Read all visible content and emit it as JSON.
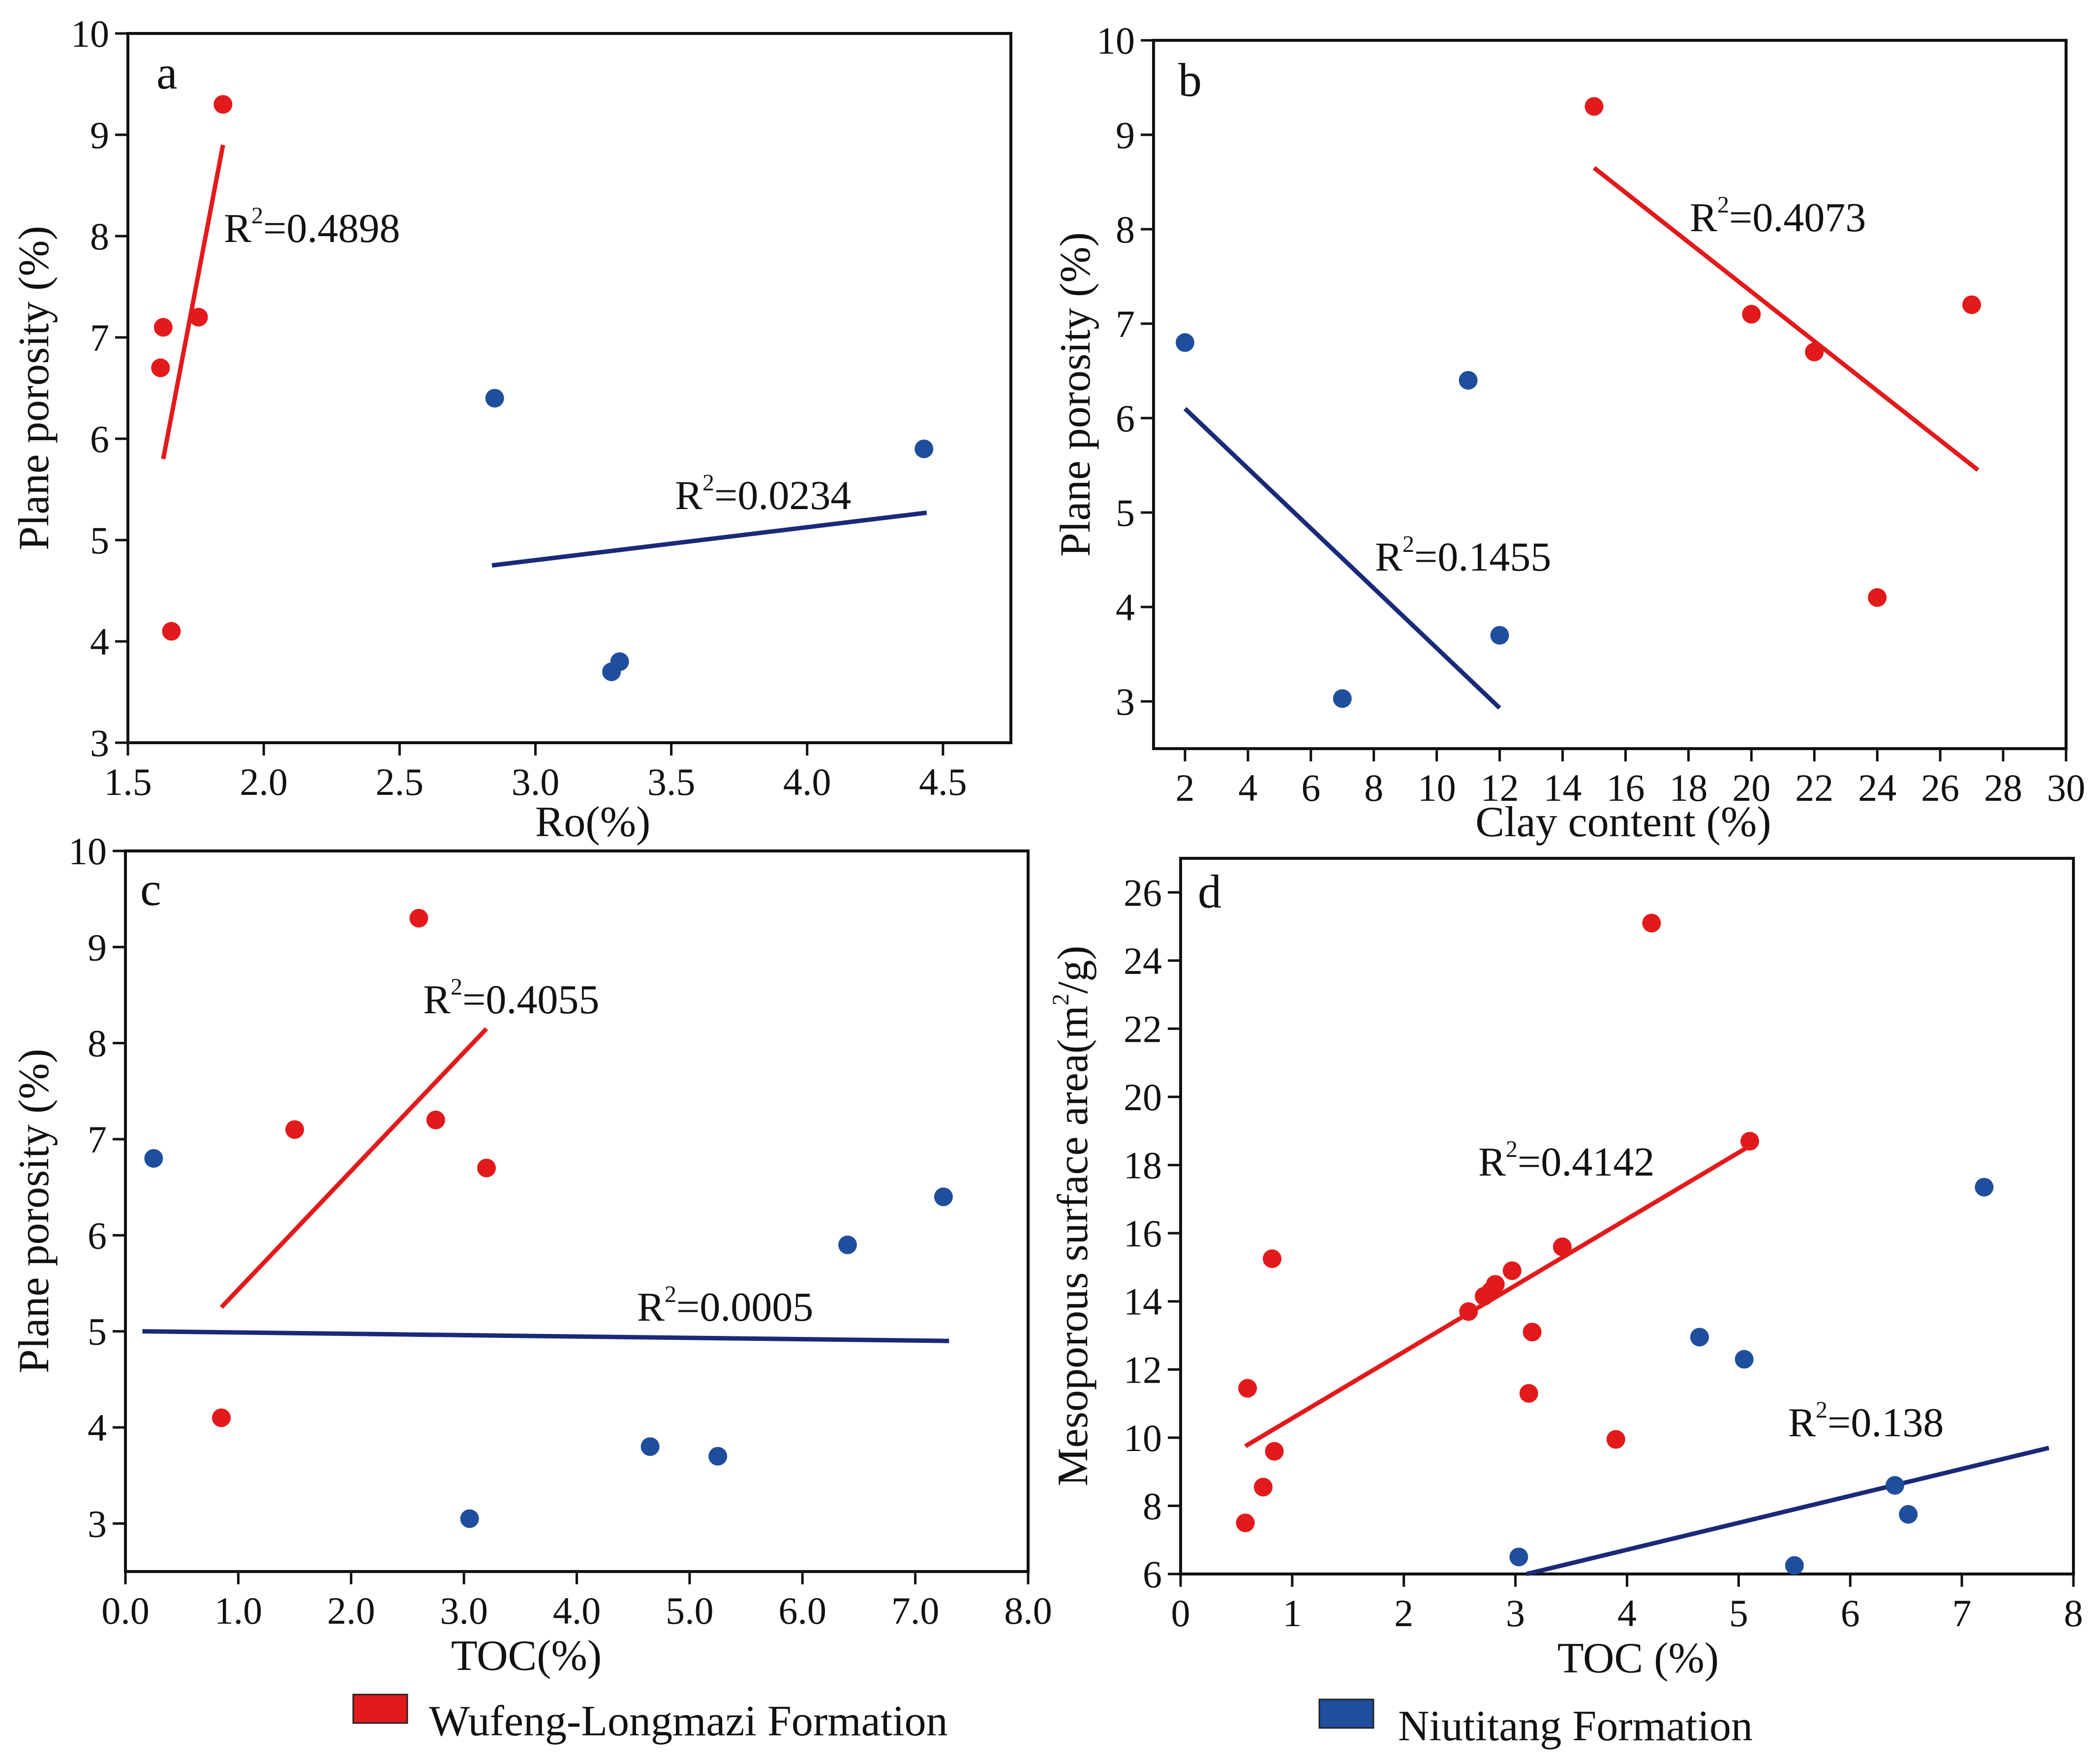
{
  "colors": {
    "wufeng": "#e31a1c",
    "niutitang": "#1f4e9c",
    "trend_blue": "#1a2a78",
    "axis": "#111111"
  },
  "legend": {
    "items": [
      {
        "label": "Wufeng-Longmazi Formation",
        "color": "#e31a1c"
      },
      {
        "label": "Niutitang Formation",
        "color": "#1f4e9c"
      }
    ]
  },
  "chart_data": [
    {
      "type": "scatter",
      "panel": "a",
      "xlabel": "Ro(%)",
      "ylabel": "Plane porosity (%)",
      "xlim": [
        1.5,
        4.75
      ],
      "ylim": [
        3,
        10
      ],
      "xticks": [
        1.5,
        2.0,
        2.5,
        3.0,
        3.5,
        4.0,
        4.5
      ],
      "xtick_labels": [
        "1.5",
        "2.0",
        "2.5",
        "3.0",
        "3.5",
        "4.0",
        "4.5"
      ],
      "yticks": [
        3,
        4,
        5,
        6,
        7,
        8,
        9,
        10
      ],
      "ytick_labels": [
        "3",
        "4",
        "5",
        "6",
        "7",
        "8",
        "9",
        "10"
      ],
      "series": [
        {
          "name": "Wufeng-Longmazi Formation",
          "color": "#e31a1c",
          "points": [
            [
              1.85,
              9.3
            ],
            [
              1.63,
              7.1
            ],
            [
              1.62,
              6.7
            ],
            [
              1.76,
              7.2
            ],
            [
              1.66,
              4.1
            ]
          ],
          "fit": {
            "x": [
              1.63,
              1.85
            ],
            "y": [
              5.8,
              8.9
            ],
            "color": "#e31a1c"
          },
          "r2": "0.4898"
        },
        {
          "name": "Niutitang Formation",
          "color": "#1f4e9c",
          "points": [
            [
              2.85,
              6.4
            ],
            [
              4.43,
              5.9
            ],
            [
              3.28,
              3.7
            ],
            [
              3.31,
              3.8
            ]
          ],
          "fit": {
            "x": [
              2.84,
              4.44
            ],
            "y": [
              4.75,
              5.27
            ],
            "color": "#1a2a78"
          },
          "r2": "0.0234"
        }
      ]
    },
    {
      "type": "scatter",
      "panel": "b",
      "xlabel": "Clay content (%)",
      "ylabel": "Plane porosity (%)",
      "xlim": [
        1,
        30
      ],
      "ylim": [
        2.5,
        10
      ],
      "xticks": [
        2,
        4,
        6,
        8,
        10,
        12,
        14,
        16,
        18,
        20,
        22,
        24,
        26,
        28,
        30
      ],
      "xtick_labels": [
        "2",
        "4",
        "6",
        "8",
        "10",
        "12",
        "14",
        "16",
        "18",
        "20",
        "22",
        "24",
        "26",
        "28",
        "30"
      ],
      "yticks": [
        3,
        4,
        5,
        6,
        7,
        8,
        9,
        10
      ],
      "ytick_labels": [
        "3",
        "4",
        "5",
        "6",
        "7",
        "8",
        "9",
        "10"
      ],
      "series": [
        {
          "name": "Wufeng-Longmazi Formation",
          "color": "#e31a1c",
          "points": [
            [
              15.0,
              9.3
            ],
            [
              20.0,
              7.1
            ],
            [
              22.0,
              6.7
            ],
            [
              27.0,
              7.2
            ],
            [
              24.0,
              4.1
            ]
          ],
          "fit": {
            "x": [
              15.0,
              27.2
            ],
            "y": [
              8.65,
              5.45
            ],
            "color": "#e31a1c"
          },
          "r2": "0.4073"
        },
        {
          "name": "Niutitang Formation",
          "color": "#1f4e9c",
          "points": [
            [
              2.0,
              6.8
            ],
            [
              11.0,
              6.4
            ],
            [
              12.0,
              3.7
            ],
            [
              7.0,
              3.03
            ]
          ],
          "fit": {
            "x": [
              2.0,
              12.0
            ],
            "y": [
              6.1,
              2.93
            ],
            "color": "#1a2a78"
          },
          "r2": "0.1455"
        }
      ]
    },
    {
      "type": "scatter",
      "panel": "c",
      "xlabel": "TOC(%)",
      "ylabel": "Plane porosity (%)",
      "xlim": [
        0,
        8
      ],
      "ylim": [
        2.5,
        10
      ],
      "xticks": [
        0,
        1,
        2,
        3,
        4,
        5,
        6,
        7,
        8
      ],
      "xtick_labels": [
        "0.0",
        "1.0",
        "2.0",
        "3.0",
        "4.0",
        "5.0",
        "6.0",
        "7.0",
        "8.0"
      ],
      "yticks": [
        3,
        4,
        5,
        6,
        7,
        8,
        9,
        10
      ],
      "ytick_labels": [
        "3",
        "4",
        "5",
        "6",
        "7",
        "8",
        "9",
        "10"
      ],
      "series": [
        {
          "name": "Wufeng-Longmazi Formation",
          "color": "#e31a1c",
          "points": [
            [
              2.6,
              9.3
            ],
            [
              1.5,
              7.1
            ],
            [
              2.75,
              7.2
            ],
            [
              3.2,
              6.7
            ],
            [
              0.85,
              4.1
            ]
          ],
          "fit": {
            "x": [
              0.85,
              3.2
            ],
            "y": [
              5.25,
              8.15
            ],
            "color": "#e31a1c"
          },
          "r2": "0.4055"
        },
        {
          "name": "Niutitang Formation",
          "color": "#1f4e9c",
          "points": [
            [
              0.25,
              6.8
            ],
            [
              6.4,
              5.9
            ],
            [
              7.25,
              6.4
            ],
            [
              4.65,
              3.8
            ],
            [
              5.25,
              3.7
            ],
            [
              3.05,
              3.05
            ]
          ],
          "fit": {
            "x": [
              0.15,
              7.3
            ],
            "y": [
              5.0,
              4.9
            ],
            "color": "#1a2a78"
          },
          "r2": "0.0005"
        }
      ]
    },
    {
      "type": "scatter",
      "panel": "d",
      "xlabel": "TOC (%)",
      "ylabel": "Mesoporous surface area(m2/g)",
      "xlim": [
        0,
        8
      ],
      "ylim": [
        6,
        27
      ],
      "xticks": [
        0,
        1,
        2,
        3,
        4,
        5,
        6,
        7,
        8
      ],
      "xtick_labels": [
        "0",
        "1",
        "2",
        "3",
        "4",
        "5",
        "6",
        "7",
        "8"
      ],
      "yticks": [
        6,
        8,
        10,
        12,
        14,
        16,
        18,
        20,
        22,
        24,
        26
      ],
      "ytick_labels": [
        "6",
        "8",
        "10",
        "12",
        "14",
        "16",
        "18",
        "20",
        "22",
        "24",
        "26"
      ],
      "series": [
        {
          "name": "Wufeng-Longmazi Formation",
          "color": "#e31a1c",
          "points": [
            [
              4.22,
              25.1
            ],
            [
              5.1,
              18.7
            ],
            [
              0.82,
              15.25
            ],
            [
              3.42,
              15.6
            ],
            [
              2.97,
              14.9
            ],
            [
              2.82,
              14.5
            ],
            [
              2.78,
              14.3
            ],
            [
              2.72,
              14.15
            ],
            [
              2.58,
              13.7
            ],
            [
              3.15,
              13.1
            ],
            [
              3.12,
              11.3
            ],
            [
              0.6,
              11.45
            ],
            [
              3.9,
              9.95
            ],
            [
              0.84,
              9.6
            ],
            [
              0.74,
              8.55
            ],
            [
              0.58,
              7.5
            ]
          ],
          "fit": {
            "x": [
              0.58,
              5.12
            ],
            "y": [
              9.75,
              18.6
            ],
            "color": "#e31a1c"
          },
          "r2": "0.4142"
        },
        {
          "name": "Niutitang Formation",
          "color": "#1f4e9c",
          "points": [
            [
              7.2,
              17.35
            ],
            [
              4.65,
              12.95
            ],
            [
              5.05,
              12.3
            ],
            [
              6.4,
              8.6
            ],
            [
              6.52,
              7.75
            ],
            [
              3.03,
              6.5
            ],
            [
              5.5,
              6.25
            ]
          ],
          "fit": {
            "x": [
              3.1,
              7.78
            ],
            "y": [
              6.0,
              9.7
            ],
            "color": "#1a2a78"
          },
          "r2": "0.138"
        }
      ]
    }
  ]
}
